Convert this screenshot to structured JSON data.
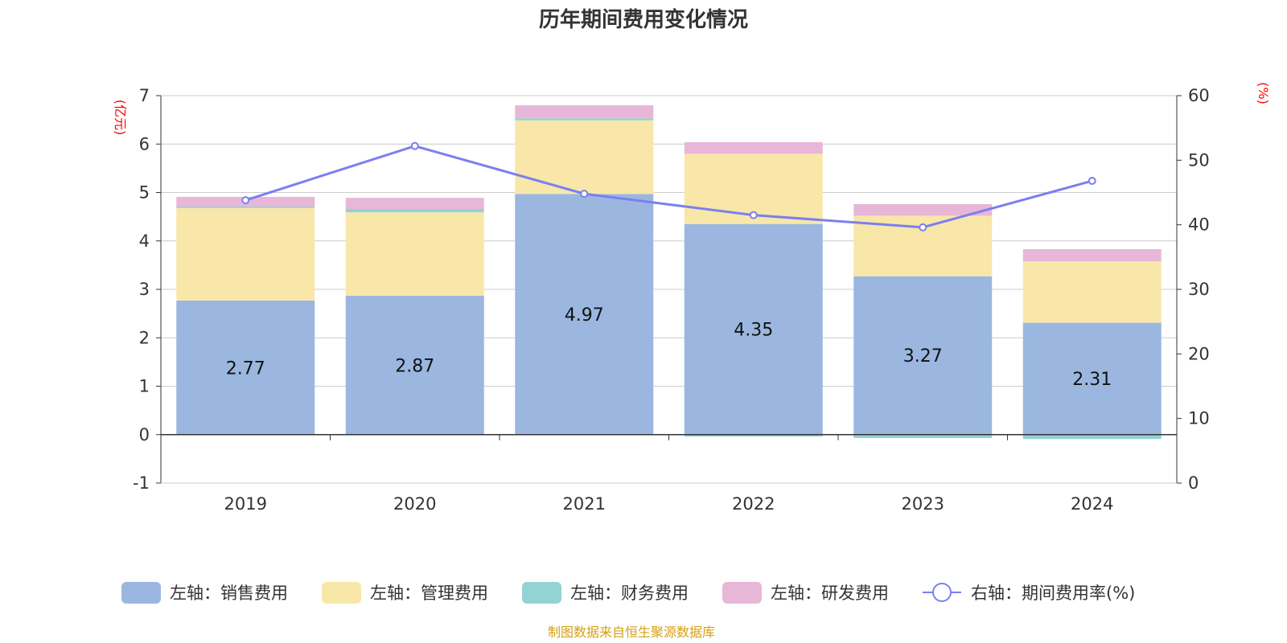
{
  "chart_data": {
    "type": "bar",
    "title": "历年期间费用变化情况",
    "categories": [
      "2019",
      "2020",
      "2021",
      "2022",
      "2023",
      "2024"
    ],
    "left_axis": {
      "unit": "(亿元)",
      "ylim": [
        -1,
        7
      ],
      "ticks": [
        "7",
        "6",
        "5",
        "4",
        "3",
        "2",
        "1",
        "0",
        "-1"
      ]
    },
    "right_axis": {
      "unit": "(%)",
      "ylim": [
        0,
        60
      ],
      "ticks": [
        "60",
        "50",
        "40",
        "30",
        "20",
        "10",
        "0"
      ]
    },
    "series": [
      {
        "name": "左轴：销售费用",
        "color": "#9bb7e0",
        "values": [
          2.77,
          2.87,
          4.97,
          4.35,
          3.27,
          2.31
        ],
        "labels": [
          "2.77",
          "2.87",
          "4.97",
          "4.35",
          "3.27",
          "2.31"
        ]
      },
      {
        "name": "左轴：管理费用",
        "color": "#f8e7a8",
        "values": [
          1.91,
          1.72,
          1.52,
          1.45,
          1.25,
          1.27
        ]
      },
      {
        "name": "左轴：财务费用",
        "color": "#93d3d4",
        "values": [
          0.03,
          0.07,
          0.04,
          -0.04,
          -0.07,
          -0.09
        ]
      },
      {
        "name": "左轴：研发费用",
        "color": "#e8b7d8",
        "values": [
          0.2,
          0.23,
          0.27,
          0.24,
          0.24,
          0.25
        ]
      },
      {
        "name": "右轴：期间费用率(%)",
        "color": "#7b7ff0",
        "type": "line",
        "axis": "right",
        "values": [
          43.8,
          52.2,
          44.8,
          41.5,
          39.6,
          46.8
        ]
      }
    ]
  },
  "source_note": "制图数据来自恒生聚源数据库"
}
